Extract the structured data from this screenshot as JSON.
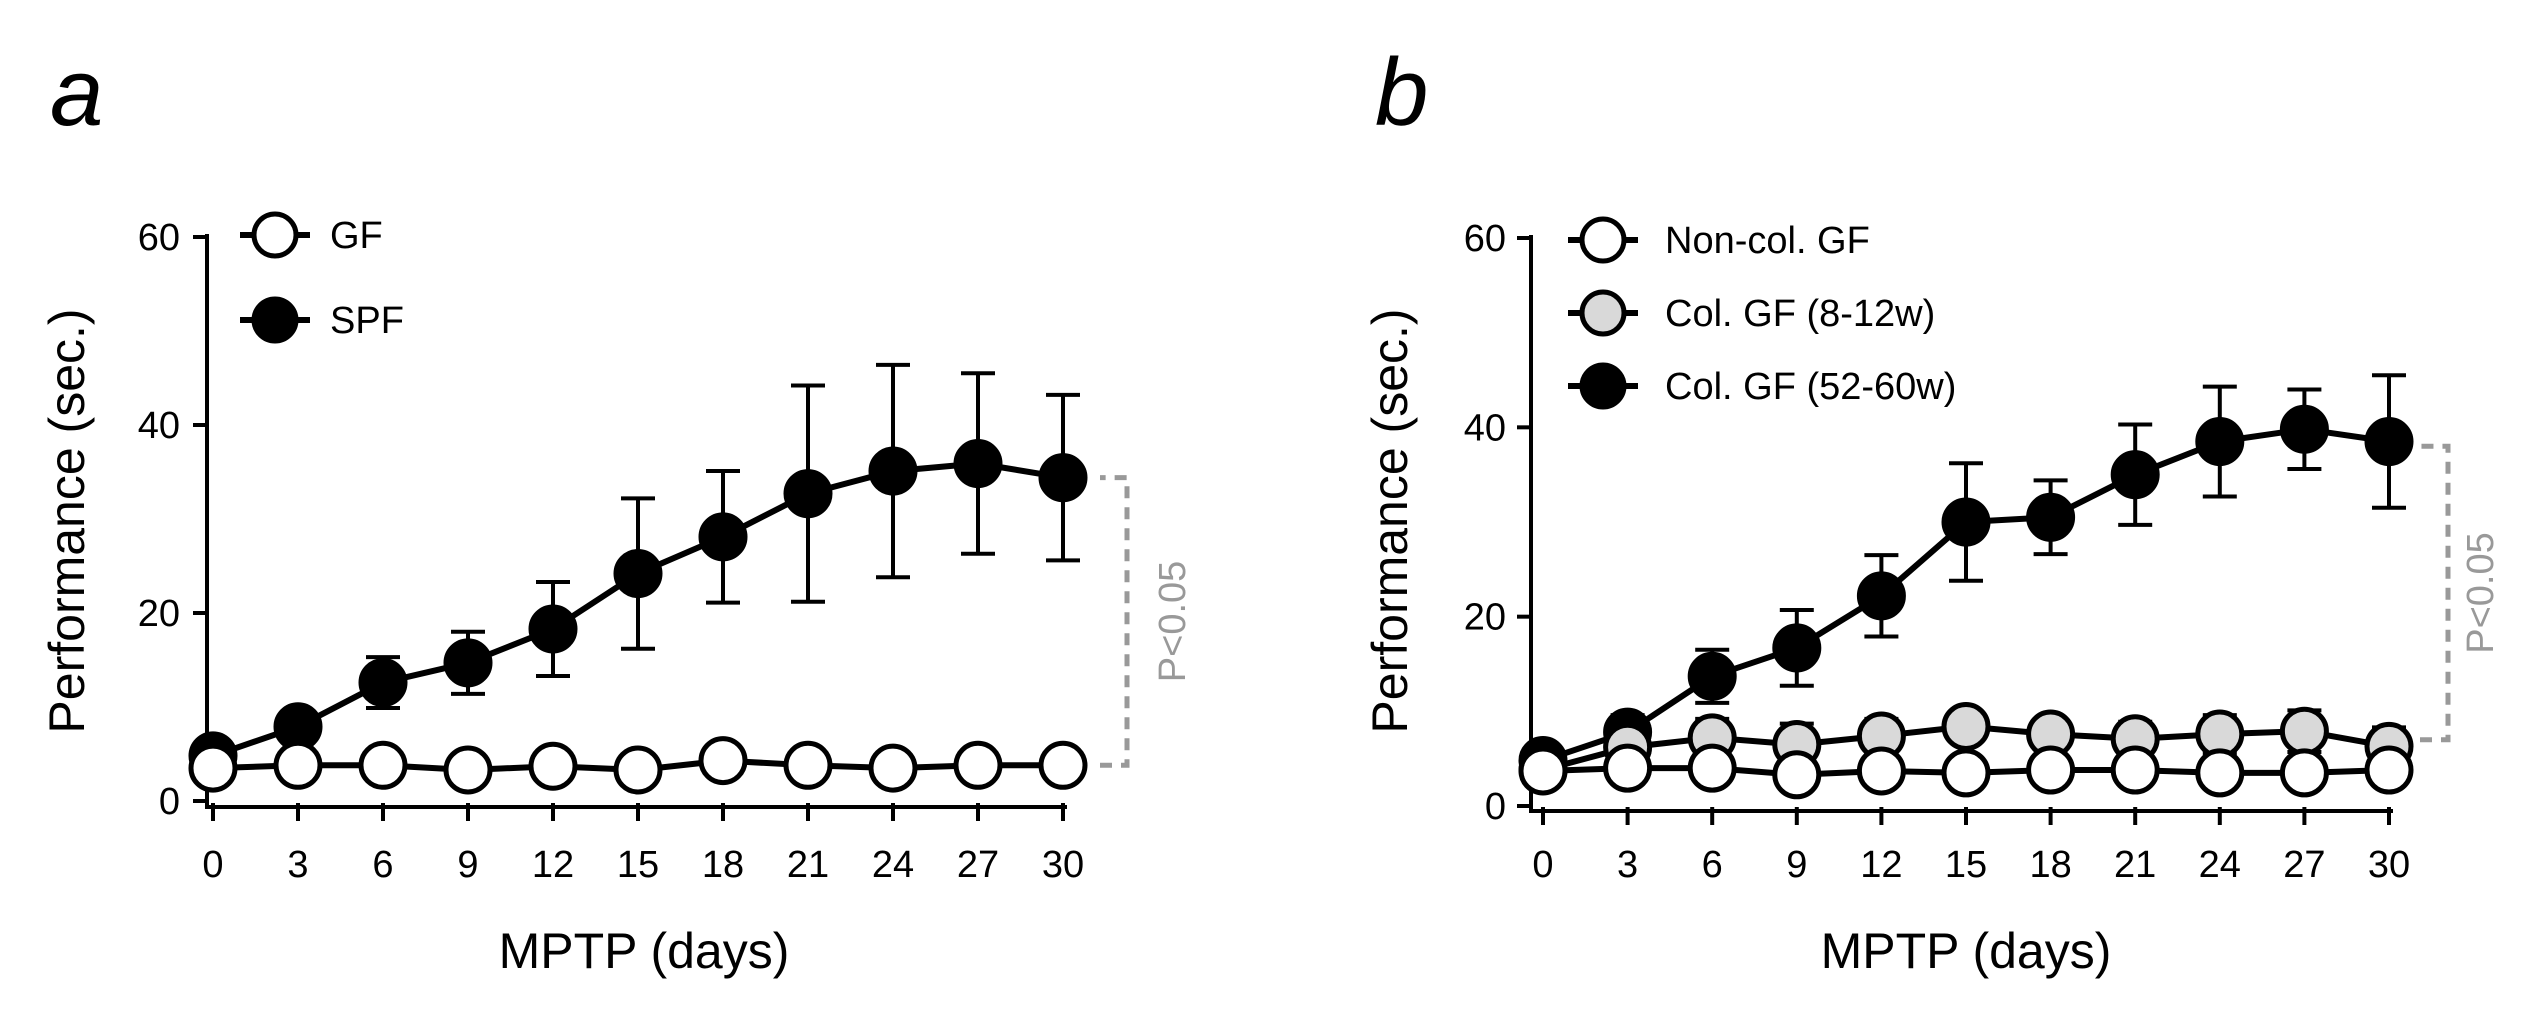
{
  "colors": {
    "ink": "#000000",
    "gray_fill": "#d9d9d9",
    "significance": "#999999",
    "open_fill": "#ffffff"
  },
  "chart_data": [
    {
      "type": "line",
      "panel": "a",
      "xlabel": "MPTP (days)",
      "ylabel": "Performance (sec.)",
      "xlim": [
        0,
        30
      ],
      "ylim": [
        0,
        60
      ],
      "x": [
        0,
        3,
        6,
        9,
        12,
        15,
        18,
        21,
        24,
        27,
        30
      ],
      "xticks": [
        "0",
        "3",
        "6",
        "9",
        "12",
        "15",
        "18",
        "21",
        "24",
        "27",
        "30"
      ],
      "yticks": [
        "0",
        "20",
        "40",
        "60"
      ],
      "grid": false,
      "legend_position": "top-left",
      "series": [
        {
          "name": "GF",
          "marker": "open",
          "values": [
            3.5,
            3.8,
            3.8,
            3.3,
            3.7,
            3.3,
            4.3,
            3.8,
            3.5,
            3.8,
            3.8
          ],
          "errors": [
            0,
            0,
            0,
            0,
            0,
            0,
            0,
            0,
            0,
            0,
            0
          ]
        },
        {
          "name": "SPF",
          "marker": "filled",
          "values": [
            4.8,
            7.9,
            12.6,
            14.7,
            18.3,
            24.2,
            28.1,
            32.7,
            35.1,
            35.9,
            34.4
          ],
          "errors": [
            0,
            1.3,
            2.7,
            3.3,
            5.0,
            8.0,
            7.0,
            11.5,
            11.3,
            9.6,
            8.8
          ]
        }
      ],
      "annotation": {
        "text": "P<0.05",
        "from_value": 3.8,
        "to_value": 34.4
      }
    },
    {
      "type": "line",
      "panel": "b",
      "xlabel": "MPTP (days)",
      "ylabel": "Performance (sec.)",
      "xlim": [
        0,
        30
      ],
      "ylim": [
        0,
        60
      ],
      "x": [
        0,
        3,
        6,
        9,
        12,
        15,
        18,
        21,
        24,
        27,
        30
      ],
      "xticks": [
        "0",
        "3",
        "6",
        "9",
        "12",
        "15",
        "18",
        "21",
        "24",
        "27",
        "30"
      ],
      "yticks": [
        "0",
        "20",
        "40",
        "60"
      ],
      "grid": false,
      "legend_position": "top-left",
      "series": [
        {
          "name": "Non-col. GF",
          "marker": "open",
          "values": [
            3.7,
            4.0,
            4.0,
            3.3,
            3.7,
            3.5,
            3.8,
            3.8,
            3.5,
            3.5,
            3.8
          ],
          "errors": [
            0,
            0,
            0,
            0,
            0,
            0,
            0,
            0,
            0,
            0,
            0
          ]
        },
        {
          "name": "Col. GF (8-12w)",
          "marker": "gray",
          "values": [
            3.8,
            6.2,
            7.2,
            6.5,
            7.4,
            8.4,
            7.6,
            7.1,
            7.6,
            7.9,
            6.3
          ],
          "errors": [
            0,
            1.5,
            2.0,
            2.2,
            1.8,
            1.5,
            1.5,
            1.8,
            2.0,
            2.2,
            2.0
          ]
        },
        {
          "name": "Col. GF (52-60w)",
          "marker": "filled",
          "values": [
            4.8,
            7.8,
            13.7,
            16.7,
            22.2,
            30.0,
            30.5,
            35.0,
            38.5,
            39.8,
            38.5
          ],
          "errors": [
            0,
            1.8,
            2.8,
            4.0,
            4.3,
            6.2,
            3.9,
            5.3,
            5.8,
            4.2,
            7.0
          ]
        }
      ],
      "annotation": {
        "text": "P<0.05",
        "from_value": 7.0,
        "to_value": 38.0
      }
    }
  ]
}
